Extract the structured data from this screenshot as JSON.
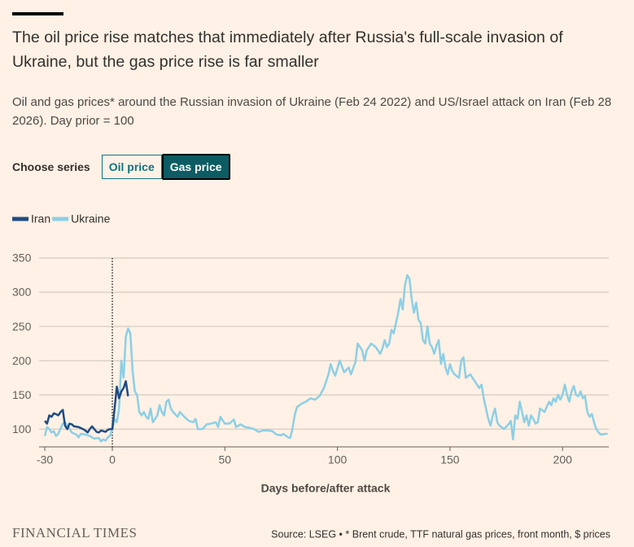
{
  "chart_data": {
    "type": "line",
    "title": "The oil price rise matches that immediately after Russia's full-scale invasion of Ukraine, but the gas price rise is far smaller",
    "subtitle": "Oil and gas prices* around the Russian invasion of Ukraine (Feb 24 2022) and US/Israel attack on Iran (Feb 28 2026). Day prior = 100",
    "controls": {
      "label": "Choose series",
      "options": [
        "Oil price",
        "Gas price"
      ],
      "selected": 1
    },
    "x_label": "Days before/after attack",
    "source": "Source: LSEG • * Brent crude, TTF natural gas prices, front month, $ prices",
    "brand": "FINANCIAL TIMES",
    "xlim": [
      -32,
      221
    ],
    "xticks": [
      -30,
      0,
      50,
      100,
      150,
      200
    ],
    "ylim": [
      74,
      350
    ],
    "yticks": [
      100,
      150,
      200,
      250,
      300,
      350
    ],
    "grid": true,
    "vline": 0,
    "series": [
      {
        "name": "Iran",
        "color": "#1e4b82",
        "x": [
          -30,
          -29,
          -28,
          -27,
          -26,
          -25,
          -24,
          -23,
          -22,
          -21,
          -20,
          -19,
          -18,
          -17,
          -15,
          -13,
          -12,
          -11,
          -10,
          -9,
          -8,
          -7,
          -6,
          -5,
          -4,
          -3,
          -2,
          -1,
          0,
          1,
          2,
          3,
          4,
          5,
          6,
          7
        ],
        "values": [
          112,
          108,
          120,
          118,
          123,
          122,
          120,
          125,
          128,
          105,
          100,
          108,
          107,
          104,
          103,
          100,
          98,
          95,
          100,
          104,
          100,
          96,
          95,
          98,
          97,
          96,
          99,
          100,
          100,
          130,
          162,
          145,
          155,
          160,
          170,
          148
        ]
      },
      {
        "name": "Ukraine",
        "color": "#8ccfe6",
        "x": [
          -30,
          -29,
          -28,
          -27,
          -26,
          -25,
          -24,
          -22,
          -21,
          -20,
          -19,
          -18,
          -16,
          -15,
          -14,
          -12,
          -10,
          -8,
          -6,
          -5,
          -4,
          -3,
          -2,
          -1,
          0,
          1,
          2,
          3,
          4,
          5,
          6,
          7,
          8,
          9,
          10,
          11,
          12,
          13,
          14,
          15,
          16,
          17,
          18,
          20,
          21,
          22,
          23,
          24,
          25,
          26,
          27,
          29,
          30,
          32,
          34,
          36,
          37,
          38,
          40,
          42,
          44,
          46,
          47,
          48,
          50,
          52,
          54,
          55,
          57,
          59,
          61,
          63,
          65,
          67,
          69,
          71,
          73,
          75,
          76,
          78,
          79,
          80,
          81,
          82,
          84,
          86,
          88,
          90,
          92,
          94,
          96,
          97,
          98,
          99,
          101,
          103,
          105,
          106,
          108,
          109,
          110,
          111,
          112,
          113,
          115,
          117,
          119,
          120,
          121,
          122,
          123,
          124,
          125,
          126,
          127,
          128,
          129,
          130,
          131,
          132,
          133,
          134,
          135,
          136,
          137,
          138,
          139,
          140,
          141,
          142,
          143,
          144,
          145,
          146,
          147,
          148,
          149,
          150,
          151,
          152,
          154,
          155,
          156,
          157,
          159,
          160,
          162,
          163,
          164,
          165,
          166,
          167,
          168,
          169,
          170,
          171,
          172,
          174,
          176,
          177,
          178,
          179,
          180,
          181,
          182,
          183,
          184,
          185,
          186,
          187,
          188,
          189,
          190,
          192,
          194,
          195,
          196,
          197,
          198,
          199,
          200,
          201,
          202,
          203,
          204,
          205,
          206,
          207,
          208,
          209,
          210,
          211,
          212,
          213,
          214,
          215,
          216,
          217,
          219,
          220
        ],
        "values": [
          90,
          103,
          100,
          95,
          97,
          90,
          93,
          108,
          110,
          105,
          100,
          95,
          92,
          88,
          93,
          92,
          90,
          86,
          87,
          82,
          85,
          83,
          88,
          90,
          100,
          115,
          110,
          130,
          200,
          175,
          235,
          247,
          240,
          185,
          155,
          150,
          125,
          120,
          125,
          118,
          115,
          130,
          110,
          120,
          135,
          125,
          120,
          140,
          143,
          130,
          125,
          118,
          125,
          118,
          112,
          110,
          115,
          100,
          100,
          107,
          108,
          110,
          103,
          118,
          108,
          108,
          114,
          103,
          107,
          103,
          102,
          100,
          96,
          98,
          98,
          97,
          92,
          91,
          93,
          88,
          87,
          100,
          120,
          132,
          137,
          140,
          145,
          143,
          148,
          160,
          180,
          195,
          185,
          178,
          200,
          183,
          190,
          180,
          198,
          225,
          220,
          215,
          200,
          215,
          225,
          220,
          210,
          218,
          230,
          220,
          225,
          245,
          240,
          255,
          270,
          290,
          275,
          310,
          325,
          320,
          290,
          270,
          285,
          260,
          255,
          230,
          225,
          250,
          225,
          220,
          210,
          222,
          230,
          195,
          210,
          190,
          180,
          195,
          185,
          180,
          175,
          200,
          205,
          175,
          180,
          175,
          165,
          160,
          165,
          145,
          130,
          115,
          105,
          120,
          130,
          110,
          105,
          100,
          107,
          112,
          85,
          120,
          115,
          140,
          125,
          110,
          120,
          105,
          120,
          115,
          108,
          110,
          130,
          125,
          140,
          135,
          145,
          140,
          150,
          143,
          150,
          165,
          150,
          140,
          155,
          163,
          150,
          148,
          155,
          145,
          148,
          125,
          118,
          122,
          110,
          100,
          95,
          92,
          93,
          93
        ]
      }
    ]
  }
}
